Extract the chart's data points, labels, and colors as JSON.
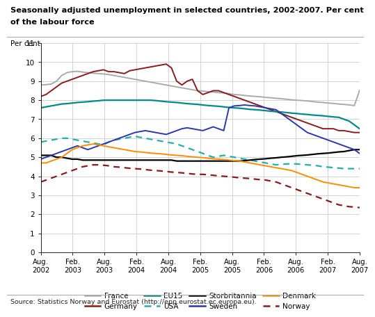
{
  "title_line1": "Seasonally adjusted unemployment in selected countries, 2002-2007. Per cent",
  "title_line2": "of the labour force",
  "ylabel": "Per cent",
  "source": "Source: Statistics Norway and Eurostat (http://epp.eurostat.ec.europa.eu).",
  "xtick_labels": [
    "Aug.\n2002",
    "Feb.\n2003",
    "Aug.\n2003",
    "Feb.\n2004",
    "Aug.\n2004",
    "Feb.\n2005",
    "Aug.\n2005",
    "Feb.\n2006",
    "Aug.\n2006",
    "Feb.\n2007",
    "Aug.\n2007"
  ],
  "ylim": [
    0,
    11
  ],
  "yticks": [
    0,
    1,
    2,
    3,
    4,
    5,
    6,
    7,
    8,
    9,
    10,
    11
  ],
  "series": {
    "France": {
      "color": "#aaaaaa",
      "linestyle": "-",
      "linewidth": 1.4,
      "values": [
        8.8,
        8.82,
        8.85,
        9.0,
        9.3,
        9.45,
        9.5,
        9.52,
        9.48,
        9.45,
        9.42,
        9.4,
        9.38,
        9.35,
        9.3,
        9.25,
        9.2,
        9.15,
        9.1,
        9.05,
        9.0,
        8.95,
        8.9,
        8.85,
        8.8,
        8.75,
        8.7,
        8.65,
        8.6,
        8.55,
        8.5,
        8.48,
        8.45,
        8.43,
        8.4,
        8.38,
        8.35,
        8.3,
        8.28,
        8.25,
        8.22,
        8.2,
        8.18,
        8.15,
        8.13,
        8.1,
        8.08,
        8.05,
        8.02,
        8.0,
        7.98,
        7.96,
        7.93,
        7.9,
        7.88,
        7.85,
        7.83,
        7.8,
        7.78,
        7.75,
        7.72,
        8.52
      ]
    },
    "Germany": {
      "color": "#8b1a1a",
      "linestyle": "-",
      "linewidth": 1.4,
      "values": [
        8.2,
        8.3,
        8.5,
        8.7,
        8.9,
        9.0,
        9.1,
        9.2,
        9.3,
        9.4,
        9.5,
        9.55,
        9.6,
        9.5,
        9.5,
        9.45,
        9.4,
        9.55,
        9.6,
        9.65,
        9.7,
        9.75,
        9.8,
        9.85,
        9.9,
        9.7,
        9.0,
        8.8,
        9.0,
        9.1,
        8.5,
        8.3,
        8.4,
        8.5,
        8.5,
        8.4,
        8.3,
        8.2,
        8.1,
        8.0,
        7.9,
        7.8,
        7.7,
        7.6,
        7.5,
        7.4,
        7.3,
        7.2,
        7.1,
        7.0,
        6.9,
        6.8,
        6.7,
        6.6,
        6.5,
        6.5,
        6.5,
        6.4,
        6.4,
        6.35,
        6.3,
        6.3
      ]
    },
    "EU15": {
      "color": "#008b8b",
      "linestyle": "-",
      "linewidth": 1.6,
      "values": [
        7.6,
        7.65,
        7.7,
        7.75,
        7.8,
        7.82,
        7.85,
        7.88,
        7.9,
        7.92,
        7.95,
        7.97,
        8.0,
        8.0,
        8.0,
        8.0,
        8.0,
        8.0,
        8.0,
        8.0,
        8.0,
        8.0,
        7.98,
        7.95,
        7.92,
        7.9,
        7.88,
        7.85,
        7.82,
        7.8,
        7.78,
        7.75,
        7.72,
        7.7,
        7.68,
        7.65,
        7.62,
        7.6,
        7.58,
        7.55,
        7.52,
        7.5,
        7.48,
        7.45,
        7.42,
        7.4,
        7.38,
        7.35,
        7.32,
        7.3,
        7.27,
        7.25,
        7.22,
        7.2,
        7.18,
        7.15,
        7.12,
        7.1,
        7.0,
        6.9,
        6.7,
        6.5
      ]
    },
    "USA": {
      "color": "#20b2aa",
      "linestyle": "--",
      "linewidth": 1.6,
      "dashes": [
        4,
        3
      ],
      "values": [
        5.8,
        5.85,
        5.9,
        5.95,
        6.0,
        6.0,
        5.95,
        5.9,
        5.85,
        5.8,
        5.75,
        5.7,
        5.65,
        5.8,
        5.9,
        5.95,
        6.0,
        6.05,
        6.1,
        6.05,
        6.0,
        5.95,
        5.9,
        5.85,
        5.8,
        5.75,
        5.7,
        5.6,
        5.5,
        5.4,
        5.3,
        5.2,
        5.1,
        5.0,
        5.05,
        5.1,
        5.05,
        5.0,
        4.95,
        4.9,
        4.85,
        4.8,
        4.75,
        4.7,
        4.65,
        4.6,
        4.62,
        4.65,
        4.65,
        4.65,
        4.62,
        4.6,
        4.58,
        4.55,
        4.5,
        4.48,
        4.45,
        4.43,
        4.4,
        4.4,
        4.4,
        4.4
      ]
    },
    "Storbritannia": {
      "color": "#000000",
      "linestyle": "-",
      "linewidth": 1.6,
      "values": [
        5.1,
        5.1,
        5.1,
        5.0,
        5.0,
        4.95,
        4.9,
        4.9,
        4.85,
        4.85,
        4.85,
        4.85,
        4.85,
        4.85,
        4.85,
        4.85,
        4.85,
        4.85,
        4.85,
        4.85,
        4.85,
        4.85,
        4.85,
        4.85,
        4.85,
        4.85,
        4.8,
        4.8,
        4.8,
        4.8,
        4.8,
        4.8,
        4.8,
        4.8,
        4.8,
        4.8,
        4.8,
        4.8,
        4.8,
        4.82,
        4.85,
        4.88,
        4.9,
        4.92,
        4.95,
        4.97,
        5.0,
        5.02,
        5.05,
        5.08,
        5.1,
        5.12,
        5.15,
        5.18,
        5.2,
        5.22,
        5.25,
        5.28,
        5.3,
        5.35,
        5.4,
        5.4
      ]
    },
    "Sweden": {
      "color": "#2b35af",
      "linestyle": "-",
      "linewidth": 1.4,
      "values": [
        4.9,
        5.0,
        5.1,
        5.2,
        5.3,
        5.4,
        5.5,
        5.6,
        5.5,
        5.4,
        5.5,
        5.6,
        5.7,
        5.8,
        5.9,
        6.0,
        6.1,
        6.2,
        6.3,
        6.35,
        6.4,
        6.35,
        6.3,
        6.25,
        6.2,
        6.3,
        6.4,
        6.5,
        6.55,
        6.5,
        6.45,
        6.4,
        6.5,
        6.6,
        6.5,
        6.4,
        7.6,
        7.7,
        7.72,
        7.75,
        7.72,
        7.7,
        7.65,
        7.6,
        7.55,
        7.5,
        7.3,
        7.1,
        6.9,
        6.7,
        6.5,
        6.3,
        6.2,
        6.1,
        6.0,
        5.9,
        5.8,
        5.7,
        5.6,
        5.5,
        5.4,
        5.2
      ]
    },
    "Denmark": {
      "color": "#ff8c00",
      "linestyle": "-",
      "linewidth": 1.4,
      "values": [
        4.7,
        4.7,
        4.8,
        4.9,
        5.0,
        5.2,
        5.4,
        5.5,
        5.6,
        5.65,
        5.7,
        5.65,
        5.6,
        5.55,
        5.5,
        5.45,
        5.4,
        5.35,
        5.3,
        5.28,
        5.25,
        5.22,
        5.2,
        5.18,
        5.15,
        5.12,
        5.1,
        5.08,
        5.05,
        5.02,
        5.0,
        4.98,
        4.95,
        4.92,
        4.9,
        4.88,
        4.85,
        4.82,
        4.8,
        4.75,
        4.7,
        4.65,
        4.6,
        4.55,
        4.5,
        4.45,
        4.4,
        4.35,
        4.3,
        4.2,
        4.1,
        4.0,
        3.9,
        3.8,
        3.7,
        3.65,
        3.6,
        3.55,
        3.5,
        3.45,
        3.4,
        3.4
      ]
    },
    "Norway": {
      "color": "#8b1a1a",
      "linestyle": "--",
      "linewidth": 1.6,
      "dashes": [
        4,
        3
      ],
      "values": [
        3.7,
        3.8,
        3.9,
        4.0,
        4.1,
        4.2,
        4.3,
        4.4,
        4.5,
        4.55,
        4.6,
        4.6,
        4.58,
        4.55,
        4.5,
        4.48,
        4.45,
        4.42,
        4.4,
        4.38,
        4.35,
        4.32,
        4.3,
        4.28,
        4.25,
        4.22,
        4.2,
        4.18,
        4.15,
        4.12,
        4.1,
        4.1,
        4.08,
        4.05,
        4.02,
        4.0,
        3.98,
        3.95,
        3.92,
        3.9,
        3.88,
        3.85,
        3.82,
        3.8,
        3.75,
        3.7,
        3.6,
        3.5,
        3.4,
        3.3,
        3.2,
        3.1,
        3.0,
        2.9,
        2.8,
        2.7,
        2.6,
        2.5,
        2.45,
        2.4,
        2.38,
        2.35
      ]
    }
  },
  "n_points": 62,
  "legend": [
    {
      "label": "France",
      "color": "#aaaaaa",
      "linestyle": "-",
      "dashes": null
    },
    {
      "label": "Germany",
      "color": "#8b1a1a",
      "linestyle": "-",
      "dashes": null
    },
    {
      "label": "EU15",
      "color": "#008b8b",
      "linestyle": "-",
      "dashes": null
    },
    {
      "label": "USA",
      "color": "#20b2aa",
      "linestyle": "--",
      "dashes": [
        4,
        3
      ]
    },
    {
      "label": "Storbritannia",
      "color": "#000000",
      "linestyle": "-",
      "dashes": null
    },
    {
      "label": "Sweden",
      "color": "#2b35af",
      "linestyle": "-",
      "dashes": null
    },
    {
      "label": "Denmark",
      "color": "#ff8c00",
      "linestyle": "-",
      "dashes": null
    },
    {
      "label": "Norway",
      "color": "#8b1a1a",
      "linestyle": "--",
      "dashes": [
        4,
        3
      ]
    }
  ],
  "bg_color": "#ffffff",
  "grid_color": "#cccccc"
}
